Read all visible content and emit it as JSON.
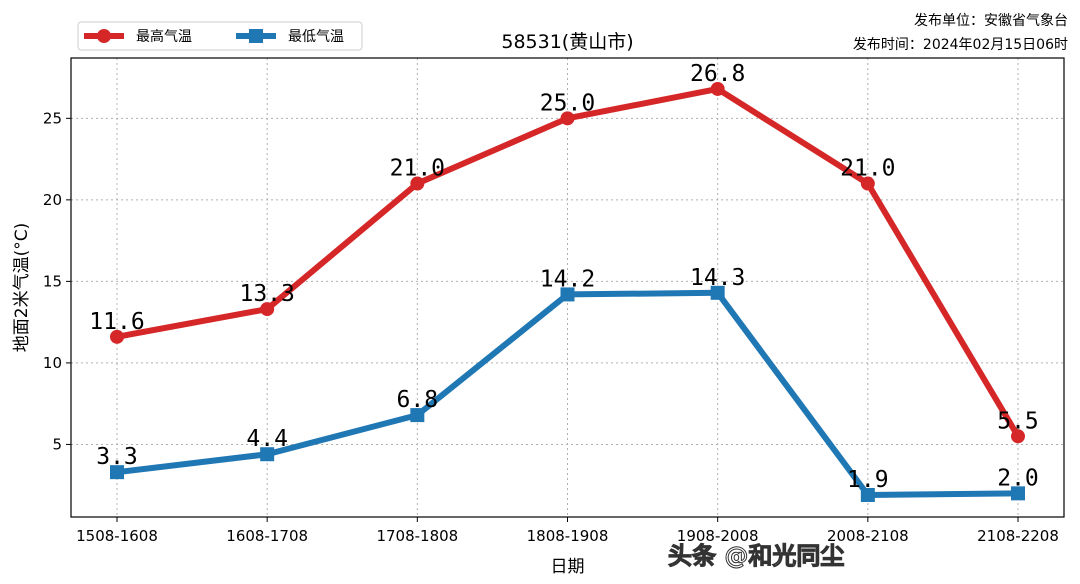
{
  "chart_data": {
    "type": "line",
    "title": "58531(黄山市)",
    "xlabel": "日期",
    "ylabel": "地面2米气温(°C)",
    "categories": [
      "1508-1608",
      "1608-1708",
      "1708-1808",
      "1808-1908",
      "1908-2008",
      "2008-2108",
      "2108-2208"
    ],
    "yticks": [
      5,
      10,
      15,
      20,
      25
    ],
    "ylim": [
      0.55,
      28.7
    ],
    "grid": true,
    "legend_position": "top-left",
    "series": [
      {
        "name": "最高气温",
        "color": "#d62728",
        "marker": "circle",
        "values": [
          11.6,
          13.3,
          21.0,
          25.0,
          26.8,
          21.0,
          5.5
        ],
        "labels": [
          "11.6",
          "13.3",
          "21.0",
          "25.0",
          "26.8",
          "21.0",
          "5.5"
        ]
      },
      {
        "name": "最低气温",
        "color": "#1f77b4",
        "marker": "square",
        "values": [
          3.3,
          4.4,
          6.8,
          14.2,
          14.3,
          1.9,
          2.0
        ],
        "labels": [
          "3.3",
          "4.4",
          "6.8",
          "14.2",
          "14.3",
          "1.9",
          "2.0"
        ]
      }
    ]
  },
  "publisher": {
    "unit": "发布单位：安徽省气象台",
    "time": "发布时间：2024年02月15日06时"
  },
  "watermark": "头条 @和光同尘"
}
